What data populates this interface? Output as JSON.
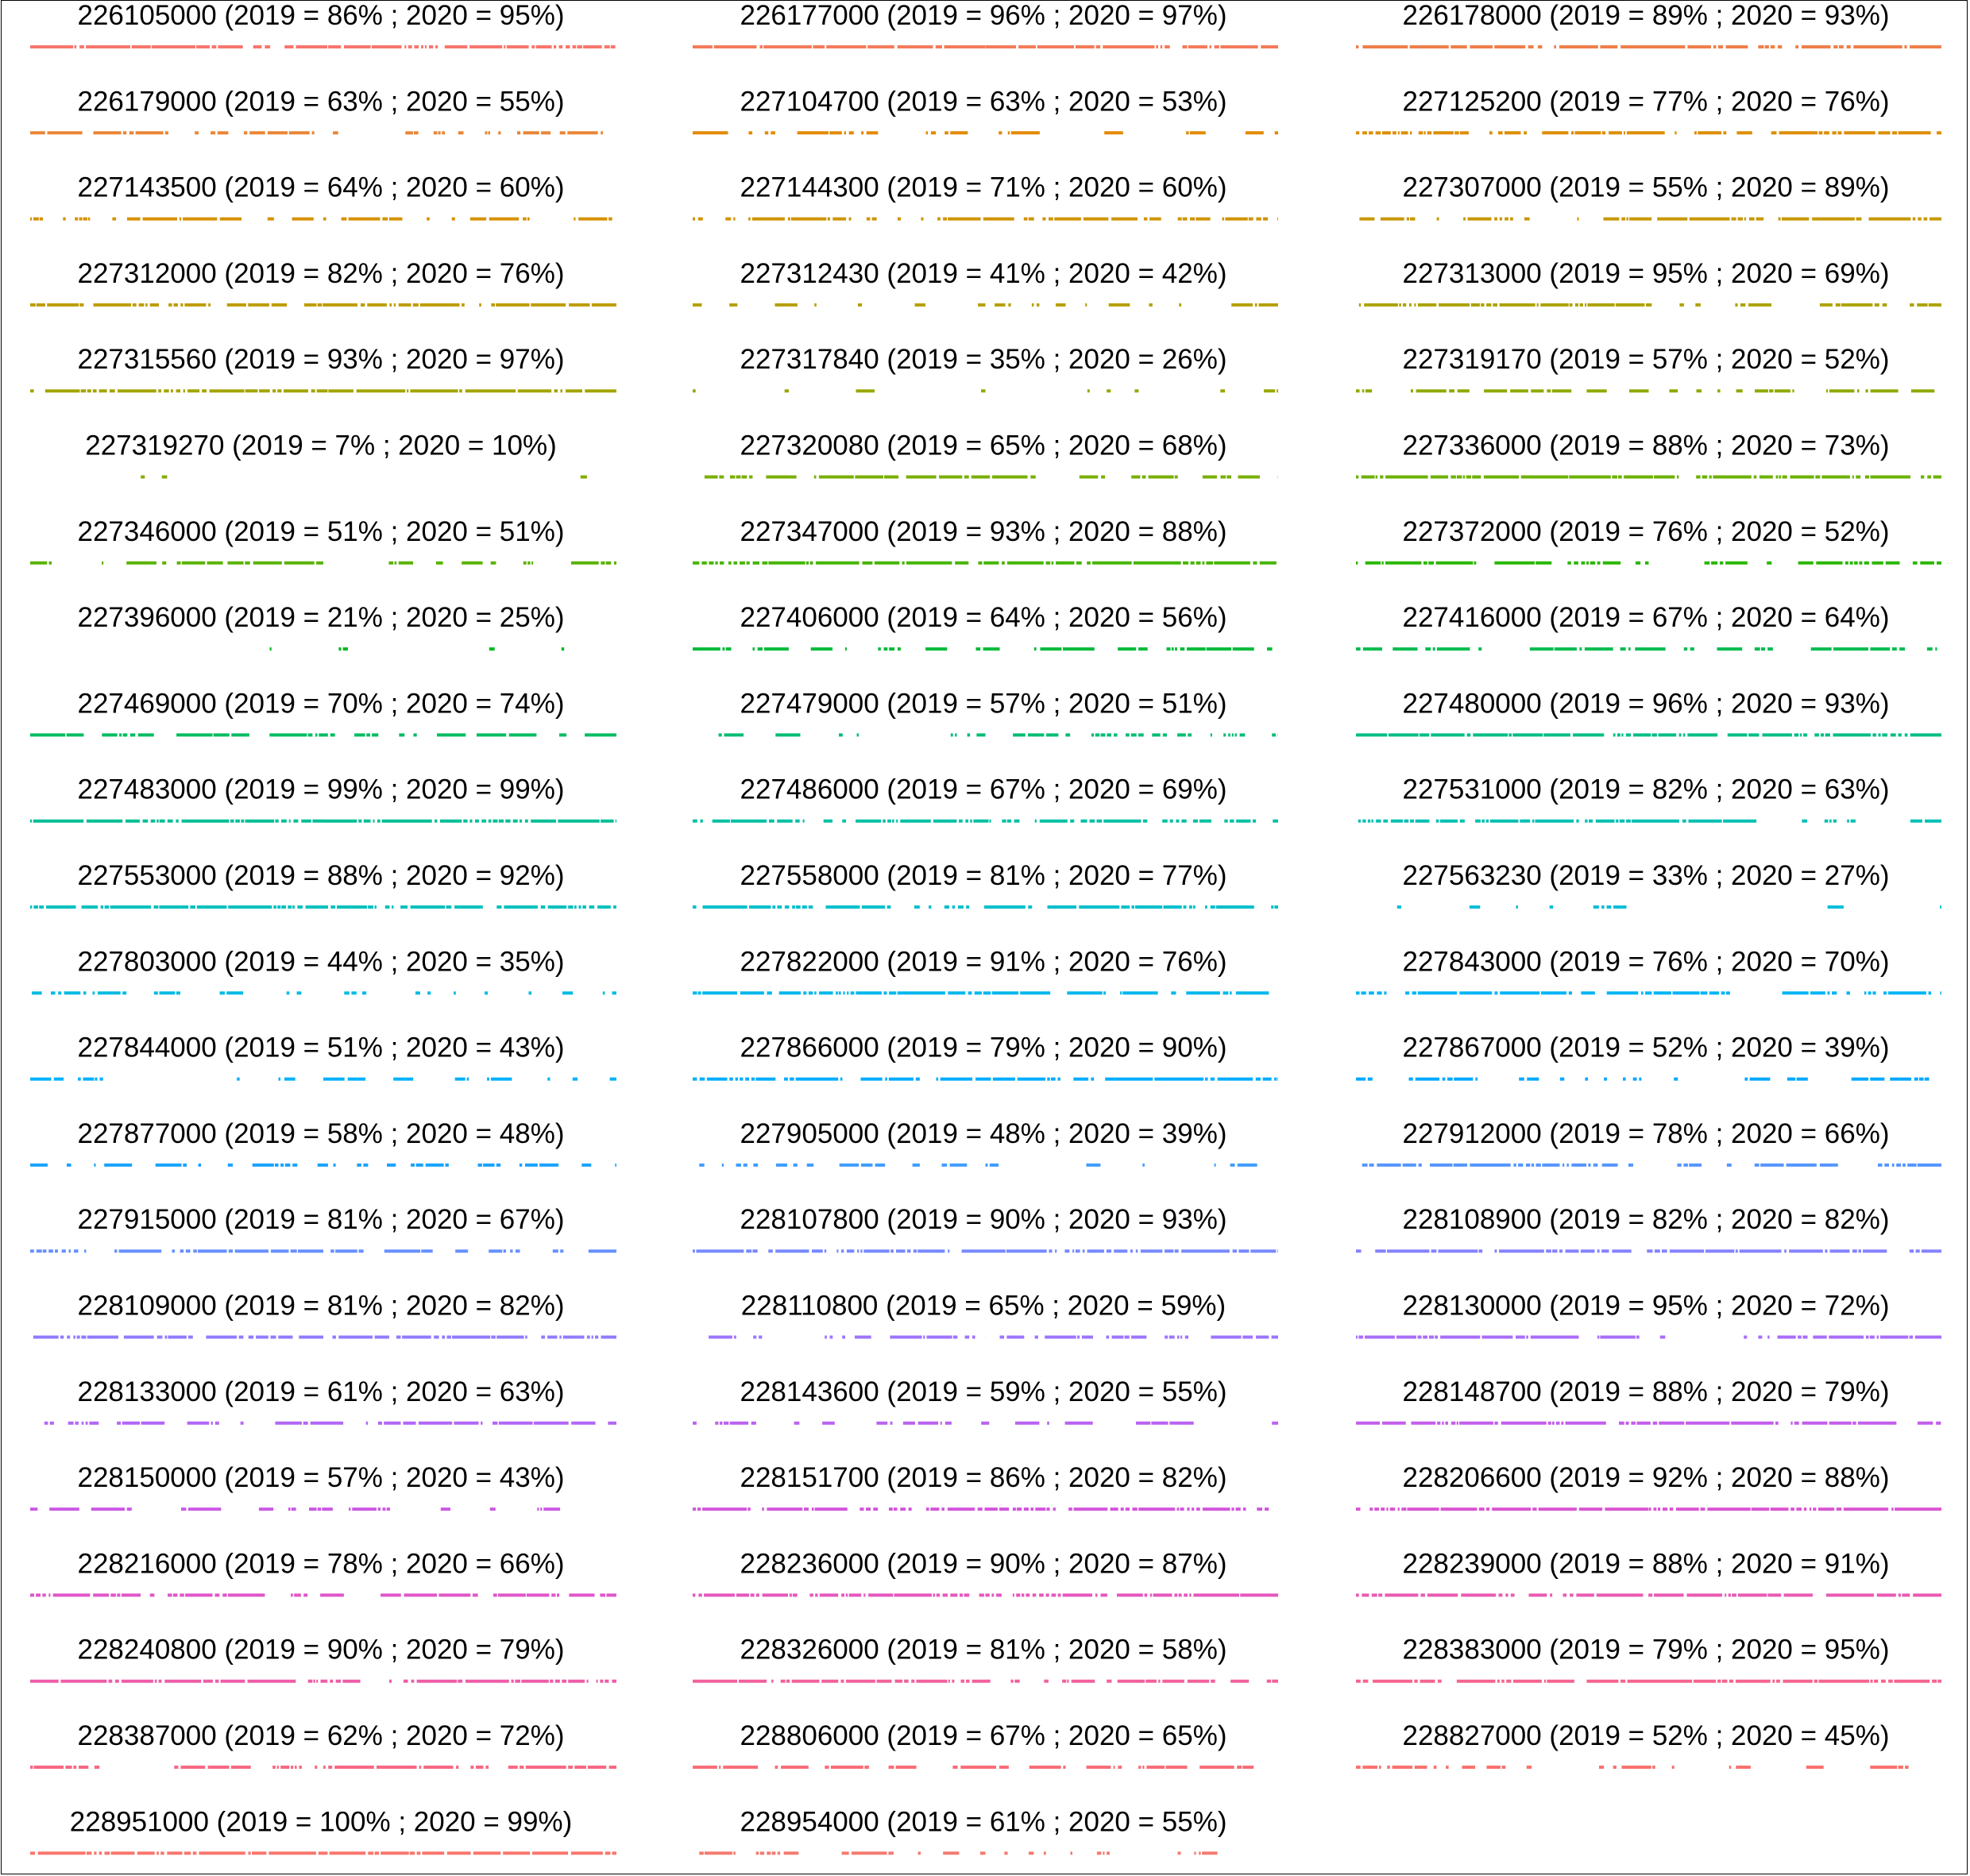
{
  "chart_data": {
    "type": "timeline-strip",
    "title": "",
    "panels": [
      {
        "label": "226105000 (2019 = 86% ; 2020 = 95%)",
        "p2019": 86,
        "p2020": 95,
        "color": "#F8766D"
      },
      {
        "label": "226177000 (2019 = 96% ; 2020 = 97%)",
        "p2019": 96,
        "p2020": 97,
        "color": "#F47B5B"
      },
      {
        "label": "226178000 (2019 = 89% ; 2020 = 93%)",
        "p2019": 89,
        "p2020": 93,
        "color": "#EF7F4A"
      },
      {
        "label": "226179000 (2019 = 63% ; 2020 = 55%)",
        "p2019": 63,
        "p2020": 55,
        "color": "#E98536"
      },
      {
        "label": "227104700 (2019 = 63% ; 2020 = 53%)",
        "p2019": 63,
        "p2020": 53,
        "color": "#E38900"
      },
      {
        "label": "227125200 (2019 = 77% ; 2020 = 76%)",
        "p2019": 77,
        "p2020": 76,
        "color": "#DD8D00"
      },
      {
        "label": "227143500 (2019 = 64% ; 2020 = 60%)",
        "p2019": 64,
        "p2020": 60,
        "color": "#D69100"
      },
      {
        "label": "227144300 (2019 = 71% ; 2020 = 60%)",
        "p2019": 71,
        "p2020": 60,
        "color": "#CF9400"
      },
      {
        "label": "227307000 (2019 = 55% ; 2020 = 89%)",
        "p2019": 55,
        "p2020": 89,
        "color": "#C79800"
      },
      {
        "label": "227312000 (2019 = 82% ; 2020 = 76%)",
        "p2019": 82,
        "p2020": 76,
        "color": "#BE9C00"
      },
      {
        "label": "227312430 (2019 = 41% ; 2020 = 42%)",
        "p2019": 41,
        "p2020": 42,
        "color": "#B59F00"
      },
      {
        "label": "227313000 (2019 = 95% ; 2020 = 69%)",
        "p2019": 95,
        "p2020": 69,
        "color": "#ACA200"
      },
      {
        "label": "227315560 (2019 = 93% ; 2020 = 97%)",
        "p2019": 93,
        "p2020": 97,
        "color": "#A3A500"
      },
      {
        "label": "227317840 (2019 = 35% ; 2020 = 26%)",
        "p2019": 35,
        "p2020": 26,
        "color": "#99A800"
      },
      {
        "label": "227319170 (2019 = 57% ; 2020 = 52%)",
        "p2019": 57,
        "p2020": 52,
        "color": "#8FAA00"
      },
      {
        "label": "227319270 (2019 = 7% ; 2020 = 10%)",
        "p2019": 7,
        "p2020": 10,
        "color": "#84AD00"
      },
      {
        "label": "227320080 (2019 = 65% ; 2020 = 68%)",
        "p2019": 65,
        "p2020": 68,
        "color": "#78AF00"
      },
      {
        "label": "227336000 (2019 = 88% ; 2020 = 73%)",
        "p2019": 88,
        "p2020": 73,
        "color": "#6BB100"
      },
      {
        "label": "227346000 (2019 = 51% ; 2020 = 51%)",
        "p2019": 51,
        "p2020": 51,
        "color": "#5BB300"
      },
      {
        "label": "227347000 (2019 = 93% ; 2020 = 88%)",
        "p2019": 93,
        "p2020": 88,
        "color": "#47B500"
      },
      {
        "label": "227372000 (2019 = 76% ; 2020 = 52%)",
        "p2019": 76,
        "p2020": 52,
        "color": "#2AB700"
      },
      {
        "label": "227396000 (2019 = 21% ; 2020 = 25%)",
        "p2019": 21,
        "p2020": 25,
        "color": "#00B81F"
      },
      {
        "label": "227406000 (2019 = 64% ; 2020 = 56%)",
        "p2019": 64,
        "p2020": 56,
        "color": "#00BA38"
      },
      {
        "label": "227416000 (2019 = 67% ; 2020 = 64%)",
        "p2019": 67,
        "p2020": 64,
        "color": "#00BB4E"
      },
      {
        "label": "227469000 (2019 = 70% ; 2020 = 74%)",
        "p2019": 70,
        "p2020": 74,
        "color": "#00BC61"
      },
      {
        "label": "227479000 (2019 = 57% ; 2020 = 51%)",
        "p2019": 57,
        "p2020": 51,
        "color": "#00BD73"
      },
      {
        "label": "227480000 (2019 = 96% ; 2020 = 93%)",
        "p2019": 96,
        "p2020": 93,
        "color": "#00BE84"
      },
      {
        "label": "227483000 (2019 = 99% ; 2020 = 99%)",
        "p2019": 99,
        "p2020": 99,
        "color": "#00BF94"
      },
      {
        "label": "227486000 (2019 = 67% ; 2020 = 69%)",
        "p2019": 67,
        "p2020": 69,
        "color": "#00C0A3"
      },
      {
        "label": "227531000 (2019 = 82% ; 2020 = 63%)",
        "p2019": 82,
        "p2020": 63,
        "color": "#00C0B2"
      },
      {
        "label": "227553000 (2019 = 88% ; 2020 = 92%)",
        "p2019": 88,
        "p2020": 92,
        "color": "#00C0BF"
      },
      {
        "label": "227558000 (2019 = 81% ; 2020 = 77%)",
        "p2019": 81,
        "p2020": 77,
        "color": "#00BFCC"
      },
      {
        "label": "227563230 (2019 = 33% ; 2020 = 27%)",
        "p2019": 33,
        "p2020": 27,
        "color": "#00BDD8"
      },
      {
        "label": "227803000 (2019 = 44% ; 2020 = 35%)",
        "p2019": 44,
        "p2020": 35,
        "color": "#00BBE3"
      },
      {
        "label": "227822000 (2019 = 91% ; 2020 = 76%)",
        "p2019": 91,
        "p2020": 76,
        "color": "#00B8ED"
      },
      {
        "label": "227843000 (2019 = 76% ; 2020 = 70%)",
        "p2019": 76,
        "p2020": 70,
        "color": "#00B5F5"
      },
      {
        "label": "227844000 (2019 = 51% ; 2020 = 43%)",
        "p2019": 51,
        "p2020": 43,
        "color": "#00B1FC"
      },
      {
        "label": "227866000 (2019 = 79% ; 2020 = 90%)",
        "p2019": 79,
        "p2020": 90,
        "color": "#00ADFF"
      },
      {
        "label": "227867000 (2019 = 52% ; 2020 = 39%)",
        "p2019": 52,
        "p2020": 39,
        "color": "#00A8FF"
      },
      {
        "label": "227877000 (2019 = 58% ; 2020 = 48%)",
        "p2019": 58,
        "p2020": 48,
        "color": "#19A2FF"
      },
      {
        "label": "227905000 (2019 = 48% ; 2020 = 39%)",
        "p2019": 48,
        "p2020": 39,
        "color": "#3F9DFF"
      },
      {
        "label": "227912000 (2019 = 78% ; 2020 = 66%)",
        "p2019": 78,
        "p2020": 66,
        "color": "#5596FF"
      },
      {
        "label": "227915000 (2019 = 81% ; 2020 = 67%)",
        "p2019": 81,
        "p2020": 67,
        "color": "#6790FF"
      },
      {
        "label": "228107800 (2019 = 90% ; 2020 = 93%)",
        "p2019": 90,
        "p2020": 93,
        "color": "#7789FF"
      },
      {
        "label": "228108900 (2019 = 82% ; 2020 = 82%)",
        "p2019": 82,
        "p2020": 82,
        "color": "#8582FF"
      },
      {
        "label": "228109000 (2019 = 81% ; 2020 = 82%)",
        "p2019": 81,
        "p2020": 82,
        "color": "#927BFF"
      },
      {
        "label": "228110800 (2019 = 65% ; 2020 = 59%)",
        "p2019": 65,
        "p2020": 59,
        "color": "#9E74FF"
      },
      {
        "label": "228130000 (2019 = 95% ; 2020 = 72%)",
        "p2019": 95,
        "p2020": 72,
        "color": "#A96DFA"
      },
      {
        "label": "228133000 (2019 = 61% ; 2020 = 63%)",
        "p2019": 61,
        "p2020": 63,
        "color": "#B267F6"
      },
      {
        "label": "228143600 (2019 = 59% ; 2020 = 55%)",
        "p2019": 59,
        "p2020": 55,
        "color": "#BB62F1"
      },
      {
        "label": "228148700 (2019 = 88% ; 2020 = 79%)",
        "p2019": 88,
        "p2020": 79,
        "color": "#C45DEB"
      },
      {
        "label": "228150000 (2019 = 57% ; 2020 = 43%)",
        "p2019": 57,
        "p2020": 43,
        "color": "#CC59E4"
      },
      {
        "label": "228151700 (2019 = 86% ; 2020 = 82%)",
        "p2019": 86,
        "p2020": 82,
        "color": "#D356DC"
      },
      {
        "label": "228206600 (2019 = 92% ; 2020 = 88%)",
        "p2019": 92,
        "p2020": 88,
        "color": "#DA55D3"
      },
      {
        "label": "228216000 (2019 = 78% ; 2020 = 66%)",
        "p2019": 78,
        "p2020": 66,
        "color": "#E055C9"
      },
      {
        "label": "228236000 (2019 = 90% ; 2020 = 87%)",
        "p2019": 90,
        "p2020": 87,
        "color": "#E556BE"
      },
      {
        "label": "228239000 (2019 = 88% ; 2020 = 91%)",
        "p2019": 88,
        "p2020": 91,
        "color": "#EA59B3"
      },
      {
        "label": "228240800 (2019 = 90% ; 2020 = 79%)",
        "p2019": 90,
        "p2020": 79,
        "color": "#EE5CA7"
      },
      {
        "label": "228326000 (2019 = 81% ; 2020 = 58%)",
        "p2019": 81,
        "p2020": 58,
        "color": "#F2609B"
      },
      {
        "label": "228383000 (2019 = 79% ; 2020 = 95%)",
        "p2019": 79,
        "p2020": 95,
        "color": "#F5648F"
      },
      {
        "label": "228387000 (2019 = 62% ; 2020 = 72%)",
        "p2019": 62,
        "p2020": 72,
        "color": "#F76883"
      },
      {
        "label": "228806000 (2019 = 67% ; 2020 = 65%)",
        "p2019": 67,
        "p2020": 65,
        "color": "#F96D77"
      },
      {
        "label": "228827000 (2019 = 52% ; 2020 = 45%)",
        "p2019": 52,
        "p2020": 45,
        "color": "#FA716C"
      },
      {
        "label": "228951000 (2019 = 100% ; 2020 = 99%)",
        "p2019": 100,
        "p2020": 99,
        "color": "#F8766D"
      },
      {
        "label": "228954000 (2019 = 61% ; 2020 = 55%)",
        "p2019": 61,
        "p2020": 55,
        "color": "#F47B70"
      }
    ]
  }
}
